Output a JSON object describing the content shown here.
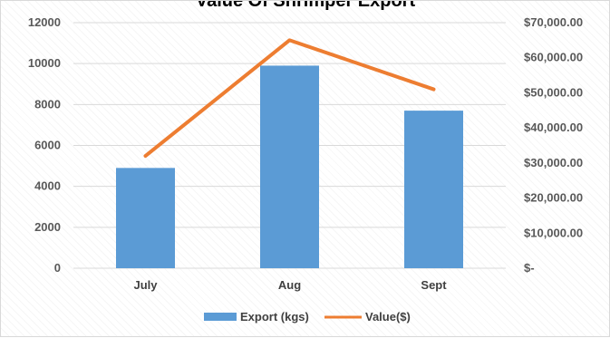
{
  "chart_data": {
    "type": "bar",
    "title": "Value Of Shrimper Export",
    "categories": [
      "July",
      "Aug",
      "Sept"
    ],
    "series": [
      {
        "name": "Export (kgs)",
        "kind": "bar",
        "axis": "left",
        "values": [
          4900,
          9900,
          7700
        ],
        "color": "#5b9bd5"
      },
      {
        "name": "Value($)",
        "kind": "line",
        "axis": "right",
        "values": [
          32000,
          65000,
          51000
        ],
        "color": "#ed7d31"
      }
    ],
    "y_left": {
      "min": 0,
      "max": 12000,
      "step": 2000,
      "ticks": [
        "0",
        "2000",
        "4000",
        "6000",
        "8000",
        "10000",
        "12000"
      ]
    },
    "y_right": {
      "min": 0,
      "max": 70000,
      "step": 10000,
      "ticks": [
        "$-",
        "$10,000.00",
        "$20,000.00",
        "$30,000.00",
        "$40,000.00",
        "$50,000.00",
        "$60,000.00",
        "$70,000.00"
      ]
    },
    "grid": true,
    "legend_position": "bottom"
  }
}
